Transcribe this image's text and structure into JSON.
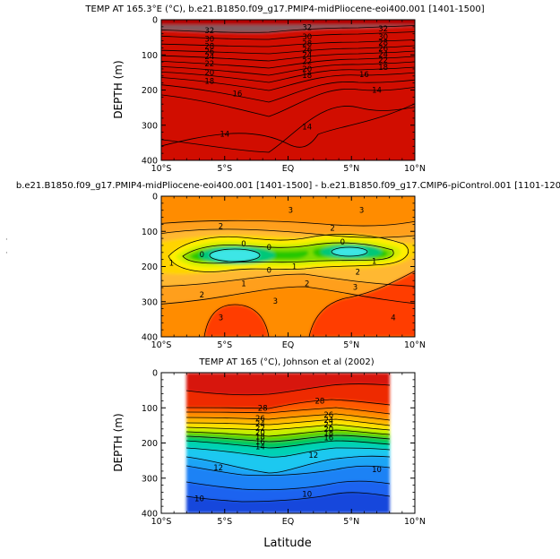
{
  "chart_data": [
    {
      "type": "heatmap",
      "title": "TEMP AT 165.3°E (°C), b.e21.B1850.f09_g17.PMIP4-midPliocene-eoi400.001 [1401-1500]",
      "ylabel": "DEPTH (m)",
      "xlabel": "",
      "x_ticks": [
        "10°S",
        "5°S",
        "EQ",
        "5°N",
        "10°N"
      ],
      "x_values": [
        -10,
        -5,
        0,
        5,
        10
      ],
      "y_ticks": [
        "0",
        "100",
        "200",
        "300",
        "400"
      ],
      "y_values": [
        0,
        100,
        200,
        300,
        400
      ],
      "xlim": [
        -10,
        10
      ],
      "ylim": [
        400,
        0
      ],
      "data_extent": [
        -10,
        10
      ],
      "colors": [
        "#b30000",
        "#d10a00",
        "#f01400",
        "#ff4a00",
        "#ff8000",
        "#ffb400",
        "#ffe000",
        "#dff000",
        "#99e600",
        "#44d400",
        "#00c832",
        "#00d884",
        "#00e4c8",
        "#3de6f0"
      ],
      "contour_labels": [
        {
          "text": "32",
          "x": -6.2,
          "y": 30
        },
        {
          "text": "32",
          "x": 1.5,
          "y": 22
        },
        {
          "text": "32",
          "x": 7.5,
          "y": 25
        },
        {
          "text": "30",
          "x": -6.2,
          "y": 55
        },
        {
          "text": "30",
          "x": 1.5,
          "y": 48
        },
        {
          "text": "30",
          "x": 7.5,
          "y": 48
        },
        {
          "text": "28",
          "x": -6.2,
          "y": 75
        },
        {
          "text": "28",
          "x": 1.5,
          "y": 68
        },
        {
          "text": "28",
          "x": 7.5,
          "y": 65
        },
        {
          "text": "26",
          "x": -6.2,
          "y": 90
        },
        {
          "text": "26",
          "x": 1.5,
          "y": 85
        },
        {
          "text": "26",
          "x": 7.5,
          "y": 82
        },
        {
          "text": "24",
          "x": -6.2,
          "y": 105
        },
        {
          "text": "24",
          "x": 1.5,
          "y": 100
        },
        {
          "text": "24",
          "x": 7.5,
          "y": 98
        },
        {
          "text": "22",
          "x": -6.2,
          "y": 125
        },
        {
          "text": "22",
          "x": 1.5,
          "y": 118
        },
        {
          "text": "22",
          "x": 7.5,
          "y": 115
        },
        {
          "text": "20",
          "x": -6.2,
          "y": 150
        },
        {
          "text": "20",
          "x": 1.5,
          "y": 140
        },
        {
          "text": "18",
          "x": 7.5,
          "y": 135
        },
        {
          "text": "18",
          "x": -6.2,
          "y": 175
        },
        {
          "text": "18",
          "x": 1.5,
          "y": 158
        },
        {
          "text": "16",
          "x": 6.0,
          "y": 155
        },
        {
          "text": "16",
          "x": -4.0,
          "y": 210
        },
        {
          "text": "14",
          "x": 7.0,
          "y": 200
        },
        {
          "text": "14",
          "x": -5.0,
          "y": 325
        },
        {
          "text": "14",
          "x": 1.5,
          "y": 305
        }
      ]
    },
    {
      "type": "heatmap",
      "title": "b.e21.B1850.f09_g17.PMIP4-midPliocene-eoi400.001 [1401-1500] - b.e21.B1850.f09_g17.CMIP6-piControl.001 [1101-120",
      "ylabel": "",
      "xlabel": "",
      "x_ticks": [
        "10°S",
        "5°S",
        "EQ",
        "5°N",
        "10°N"
      ],
      "x_values": [
        -10,
        -5,
        0,
        5,
        10
      ],
      "y_ticks": [
        "0",
        "100",
        "200",
        "300",
        "400"
      ],
      "y_values": [
        0,
        100,
        200,
        300,
        400
      ],
      "xlim": [
        -10,
        10
      ],
      "ylim": [
        400,
        0
      ],
      "data_extent": [
        -10,
        10
      ],
      "colors": [
        "#ff8c00",
        "#ff9f1a",
        "#ffb833",
        "#ffd400",
        "#ffef00",
        "#d7ef00",
        "#7fdc00",
        "#28c800",
        "#00c878",
        "#3ee6e6"
      ],
      "contour_labels": [
        {
          "text": "3",
          "x": 0.2,
          "y": 40
        },
        {
          "text": "3",
          "x": 5.8,
          "y": 40
        },
        {
          "text": "2",
          "x": -5.3,
          "y": 85
        },
        {
          "text": "2",
          "x": 3.5,
          "y": 90
        },
        {
          "text": "0",
          "x": -3.5,
          "y": 135
        },
        {
          "text": "0",
          "x": -1.5,
          "y": 145
        },
        {
          "text": "0",
          "x": 4.3,
          "y": 130
        },
        {
          "text": "0",
          "x": -6.8,
          "y": 165
        },
        {
          "text": "0",
          "x": -1.5,
          "y": 210
        },
        {
          "text": "1",
          "x": -9.2,
          "y": 190
        },
        {
          "text": "1",
          "x": 0.5,
          "y": 200
        },
        {
          "text": "1",
          "x": 6.8,
          "y": 185
        },
        {
          "text": "1",
          "x": -3.5,
          "y": 248
        },
        {
          "text": "2",
          "x": -6.8,
          "y": 280
        },
        {
          "text": "2",
          "x": 1.5,
          "y": 248
        },
        {
          "text": "2",
          "x": 5.5,
          "y": 215
        },
        {
          "text": "3",
          "x": -1.0,
          "y": 298
        },
        {
          "text": "3",
          "x": 5.3,
          "y": 258
        },
        {
          "text": "3",
          "x": -5.3,
          "y": 345
        },
        {
          "text": "4",
          "x": 8.3,
          "y": 345
        }
      ]
    },
    {
      "type": "heatmap",
      "title": "TEMP AT 165 (°C), Johnson et al (2002)",
      "ylabel": "DEPTH (m)",
      "xlabel": "Latitude",
      "x_ticks": [
        "10°S",
        "5°S",
        "EQ",
        "5°N",
        "10°N"
      ],
      "x_values": [
        -10,
        -5,
        0,
        5,
        10
      ],
      "y_ticks": [
        "0",
        "100",
        "200",
        "300",
        "400"
      ],
      "y_values": [
        0,
        100,
        200,
        300,
        400
      ],
      "xlim": [
        -10,
        10
      ],
      "ylim": [
        400,
        0
      ],
      "data_extent": [
        -8,
        8
      ],
      "colors": [
        "#d7140a",
        "#ee2b00",
        "#ff5a00",
        "#ff8c00",
        "#ffb400",
        "#ffe000",
        "#c8f000",
        "#5ad200",
        "#00c85a",
        "#00d2b4",
        "#1ec8f0",
        "#1ea5f5",
        "#1e82f5",
        "#1e64f0",
        "#1446dc"
      ],
      "contour_labels": [
        {
          "text": "28",
          "x": -2.0,
          "y": 100
        },
        {
          "text": "28",
          "x": 2.5,
          "y": 80
        },
        {
          "text": "26",
          "x": -2.2,
          "y": 130
        },
        {
          "text": "26",
          "x": 3.2,
          "y": 120
        },
        {
          "text": "24",
          "x": -2.2,
          "y": 145
        },
        {
          "text": "24",
          "x": 3.2,
          "y": 135
        },
        {
          "text": "22",
          "x": -2.2,
          "y": 158
        },
        {
          "text": "22",
          "x": 3.2,
          "y": 148
        },
        {
          "text": "20",
          "x": -2.2,
          "y": 170
        },
        {
          "text": "20",
          "x": 3.2,
          "y": 160
        },
        {
          "text": "18",
          "x": -2.2,
          "y": 182
        },
        {
          "text": "18",
          "x": 3.2,
          "y": 172
        },
        {
          "text": "16",
          "x": -2.2,
          "y": 196
        },
        {
          "text": "16",
          "x": 3.2,
          "y": 185
        },
        {
          "text": "14",
          "x": -2.2,
          "y": 210
        },
        {
          "text": "12",
          "x": -5.5,
          "y": 270
        },
        {
          "text": "12",
          "x": 2.0,
          "y": 235
        },
        {
          "text": "10",
          "x": 7.0,
          "y": 275
        },
        {
          "text": "10",
          "x": -7.0,
          "y": 358
        },
        {
          "text": "10",
          "x": 1.5,
          "y": 345
        }
      ]
    }
  ]
}
